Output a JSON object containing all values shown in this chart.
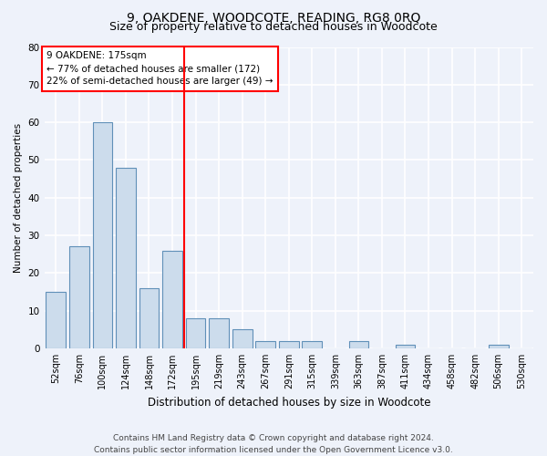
{
  "title": "9, OAKDENE, WOODCOTE, READING, RG8 0RQ",
  "subtitle": "Size of property relative to detached houses in Woodcote",
  "xlabel": "Distribution of detached houses by size in Woodcote",
  "ylabel": "Number of detached properties",
  "categories": [
    "52sqm",
    "76sqm",
    "100sqm",
    "124sqm",
    "148sqm",
    "172sqm",
    "195sqm",
    "219sqm",
    "243sqm",
    "267sqm",
    "291sqm",
    "315sqm",
    "339sqm",
    "363sqm",
    "387sqm",
    "411sqm",
    "434sqm",
    "458sqm",
    "482sqm",
    "506sqm",
    "530sqm"
  ],
  "values": [
    15,
    27,
    60,
    48,
    16,
    26,
    8,
    8,
    5,
    2,
    2,
    2,
    0,
    2,
    0,
    1,
    0,
    0,
    0,
    1,
    0
  ],
  "bar_color": "#ccdcec",
  "bar_edge_color": "#6090b8",
  "red_line_index": 5,
  "annotation_text": "9 OAKDENE: 175sqm\n← 77% of detached houses are smaller (172)\n22% of semi-detached houses are larger (49) →",
  "ylim": [
    0,
    80
  ],
  "yticks": [
    0,
    10,
    20,
    30,
    40,
    50,
    60,
    70,
    80
  ],
  "footer_line1": "Contains HM Land Registry data © Crown copyright and database right 2024.",
  "footer_line2": "Contains public sector information licensed under the Open Government Licence v3.0.",
  "background_color": "#eef2fa",
  "grid_color": "#ffffff",
  "title_fontsize": 10,
  "subtitle_fontsize": 9,
  "annotation_fontsize": 7.5,
  "ylabel_fontsize": 7.5,
  "xlabel_fontsize": 8.5,
  "footer_fontsize": 6.5,
  "tick_fontsize": 7,
  "ytick_fontsize": 7.5
}
